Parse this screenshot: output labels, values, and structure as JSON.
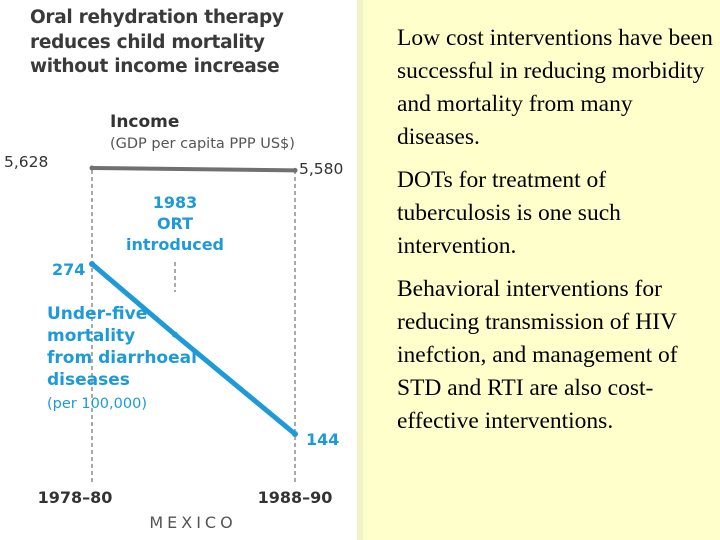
{
  "figure": {
    "title_lines": [
      "Oral rehydration therapy",
      "reduces child mortality",
      "without income increase"
    ]
  },
  "chart_data": [
    {
      "type": "line",
      "title": "Income",
      "ylabel": "(GDP per capita PPP US$)",
      "categories": [
        "1978–80",
        "1988–90"
      ],
      "series": [
        {
          "name": "Income",
          "values": [
            5628,
            5580
          ],
          "color": "#707070"
        }
      ],
      "data_labels": [
        "5,628",
        "5,580"
      ]
    },
    {
      "type": "line",
      "title": "Under-five mortality from diarrhoeal diseases",
      "label_lines": [
        "Under-five",
        "mortality",
        "from diarrhoeal",
        "diseases"
      ],
      "unit": "(per 100,000)",
      "categories": [
        "1978–80",
        "1983",
        "1988–90"
      ],
      "series": [
        {
          "name": "Under-five mortality",
          "values": [
            274,
            220,
            144
          ],
          "color": "#1e9ad8"
        }
      ],
      "data_labels": [
        "274",
        "144"
      ],
      "annotation_lines": [
        "1983",
        "ORT",
        "introduced"
      ],
      "country": "MEXICO",
      "ylim": [
        100,
        300
      ]
    }
  ],
  "bullets": [
    "Low cost interventions have been successful in reducing morbidity and mortality from many diseases.",
    "DOTs for treatment of tuberculosis is one such intervention.",
    "Behavioral interventions for reducing transmission of HIV inefction, and management of STD and RTI are also cost-effective interventions."
  ]
}
